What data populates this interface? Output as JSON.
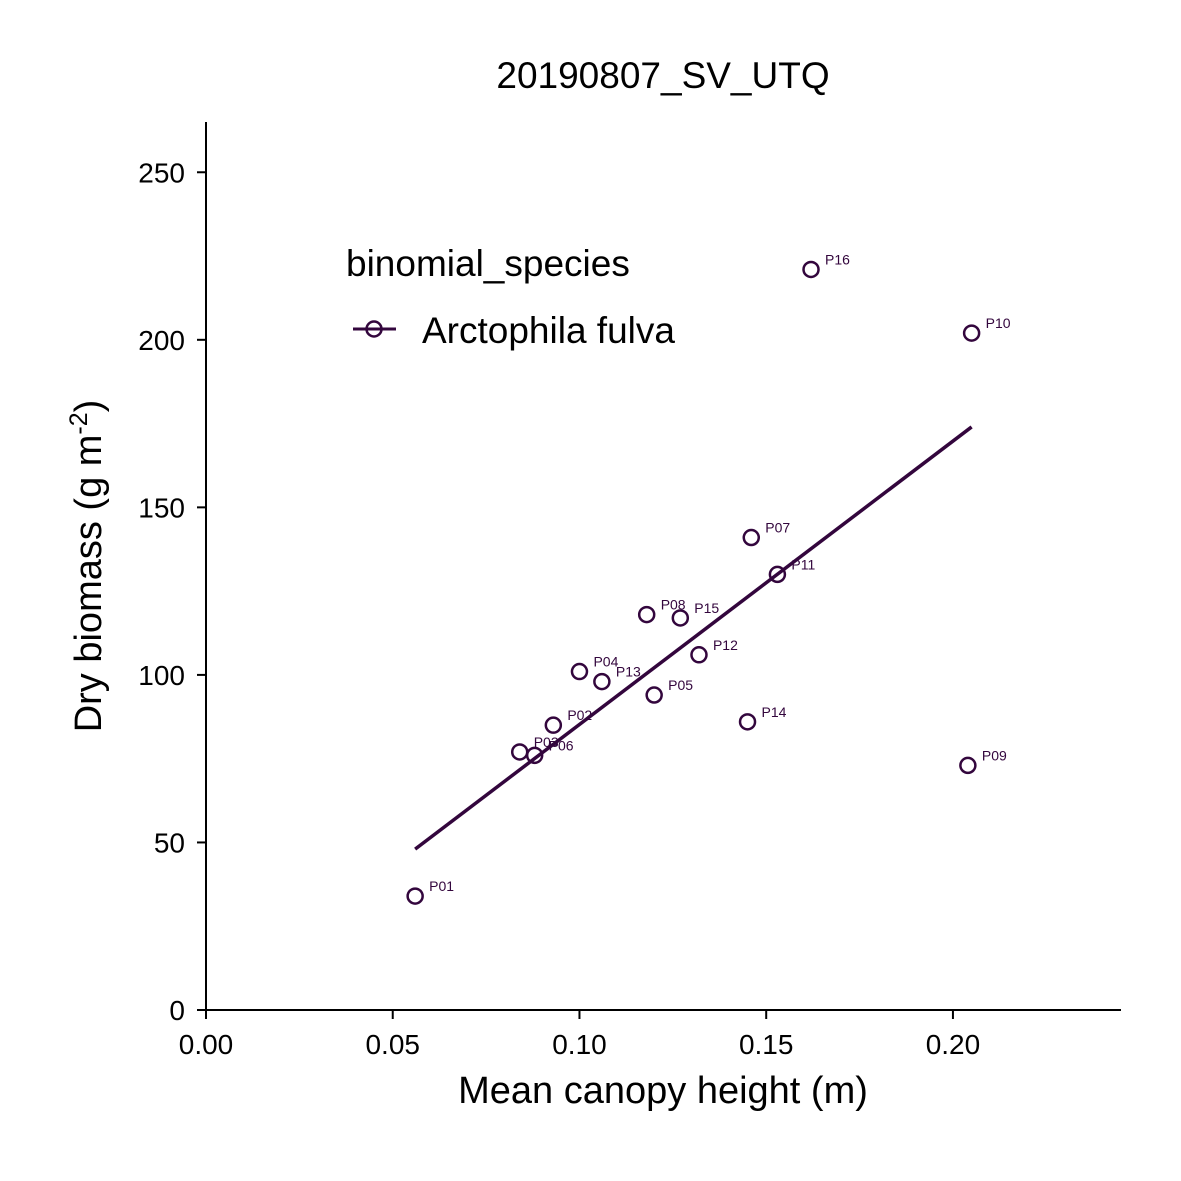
{
  "chart_data": {
    "type": "scatter",
    "title": "20190807_SV_UTQ",
    "xlabel": "Mean canopy height (m)",
    "ylabel_main": "Dry biomass (g m",
    "ylabel_sup": "-2",
    "ylabel_close": ")",
    "xlim": [
      0,
      0.245
    ],
    "ylim": [
      0,
      265
    ],
    "x_ticks": [
      0.0,
      0.05,
      0.1,
      0.15,
      0.2
    ],
    "x_tick_labels": [
      "0.00",
      "0.05",
      "0.10",
      "0.15",
      "0.20"
    ],
    "y_ticks": [
      0,
      50,
      100,
      150,
      200,
      250
    ],
    "y_tick_labels": [
      "0",
      "50",
      "100",
      "150",
      "200",
      "250"
    ],
    "grid": false,
    "legend": {
      "title": "binomial_species",
      "placement": "top-left",
      "entries": [
        "Arctophila fulva"
      ]
    },
    "series_color": "#33063d",
    "series": [
      {
        "name": "Arctophila fulva",
        "points": [
          {
            "label": "P01",
            "x": 0.056,
            "y": 34
          },
          {
            "label": "P02",
            "x": 0.093,
            "y": 85
          },
          {
            "label": "P03",
            "x": 0.084,
            "y": 77
          },
          {
            "label": "P04",
            "x": 0.1,
            "y": 101
          },
          {
            "label": "P05",
            "x": 0.12,
            "y": 94
          },
          {
            "label": "P06",
            "x": 0.088,
            "y": 76
          },
          {
            "label": "P07",
            "x": 0.146,
            "y": 141
          },
          {
            "label": "P08",
            "x": 0.118,
            "y": 118
          },
          {
            "label": "P09",
            "x": 0.204,
            "y": 73
          },
          {
            "label": "P10",
            "x": 0.205,
            "y": 202
          },
          {
            "label": "P11",
            "x": 0.153,
            "y": 130
          },
          {
            "label": "P12",
            "x": 0.132,
            "y": 106
          },
          {
            "label": "P13",
            "x": 0.106,
            "y": 98
          },
          {
            "label": "P14",
            "x": 0.145,
            "y": 86
          },
          {
            "label": "P15",
            "x": 0.127,
            "y": 117
          },
          {
            "label": "P16",
            "x": 0.162,
            "y": 221
          }
        ],
        "fit_line": {
          "x": [
            0.056,
            0.205
          ],
          "y": [
            48,
            174
          ]
        }
      }
    ]
  }
}
